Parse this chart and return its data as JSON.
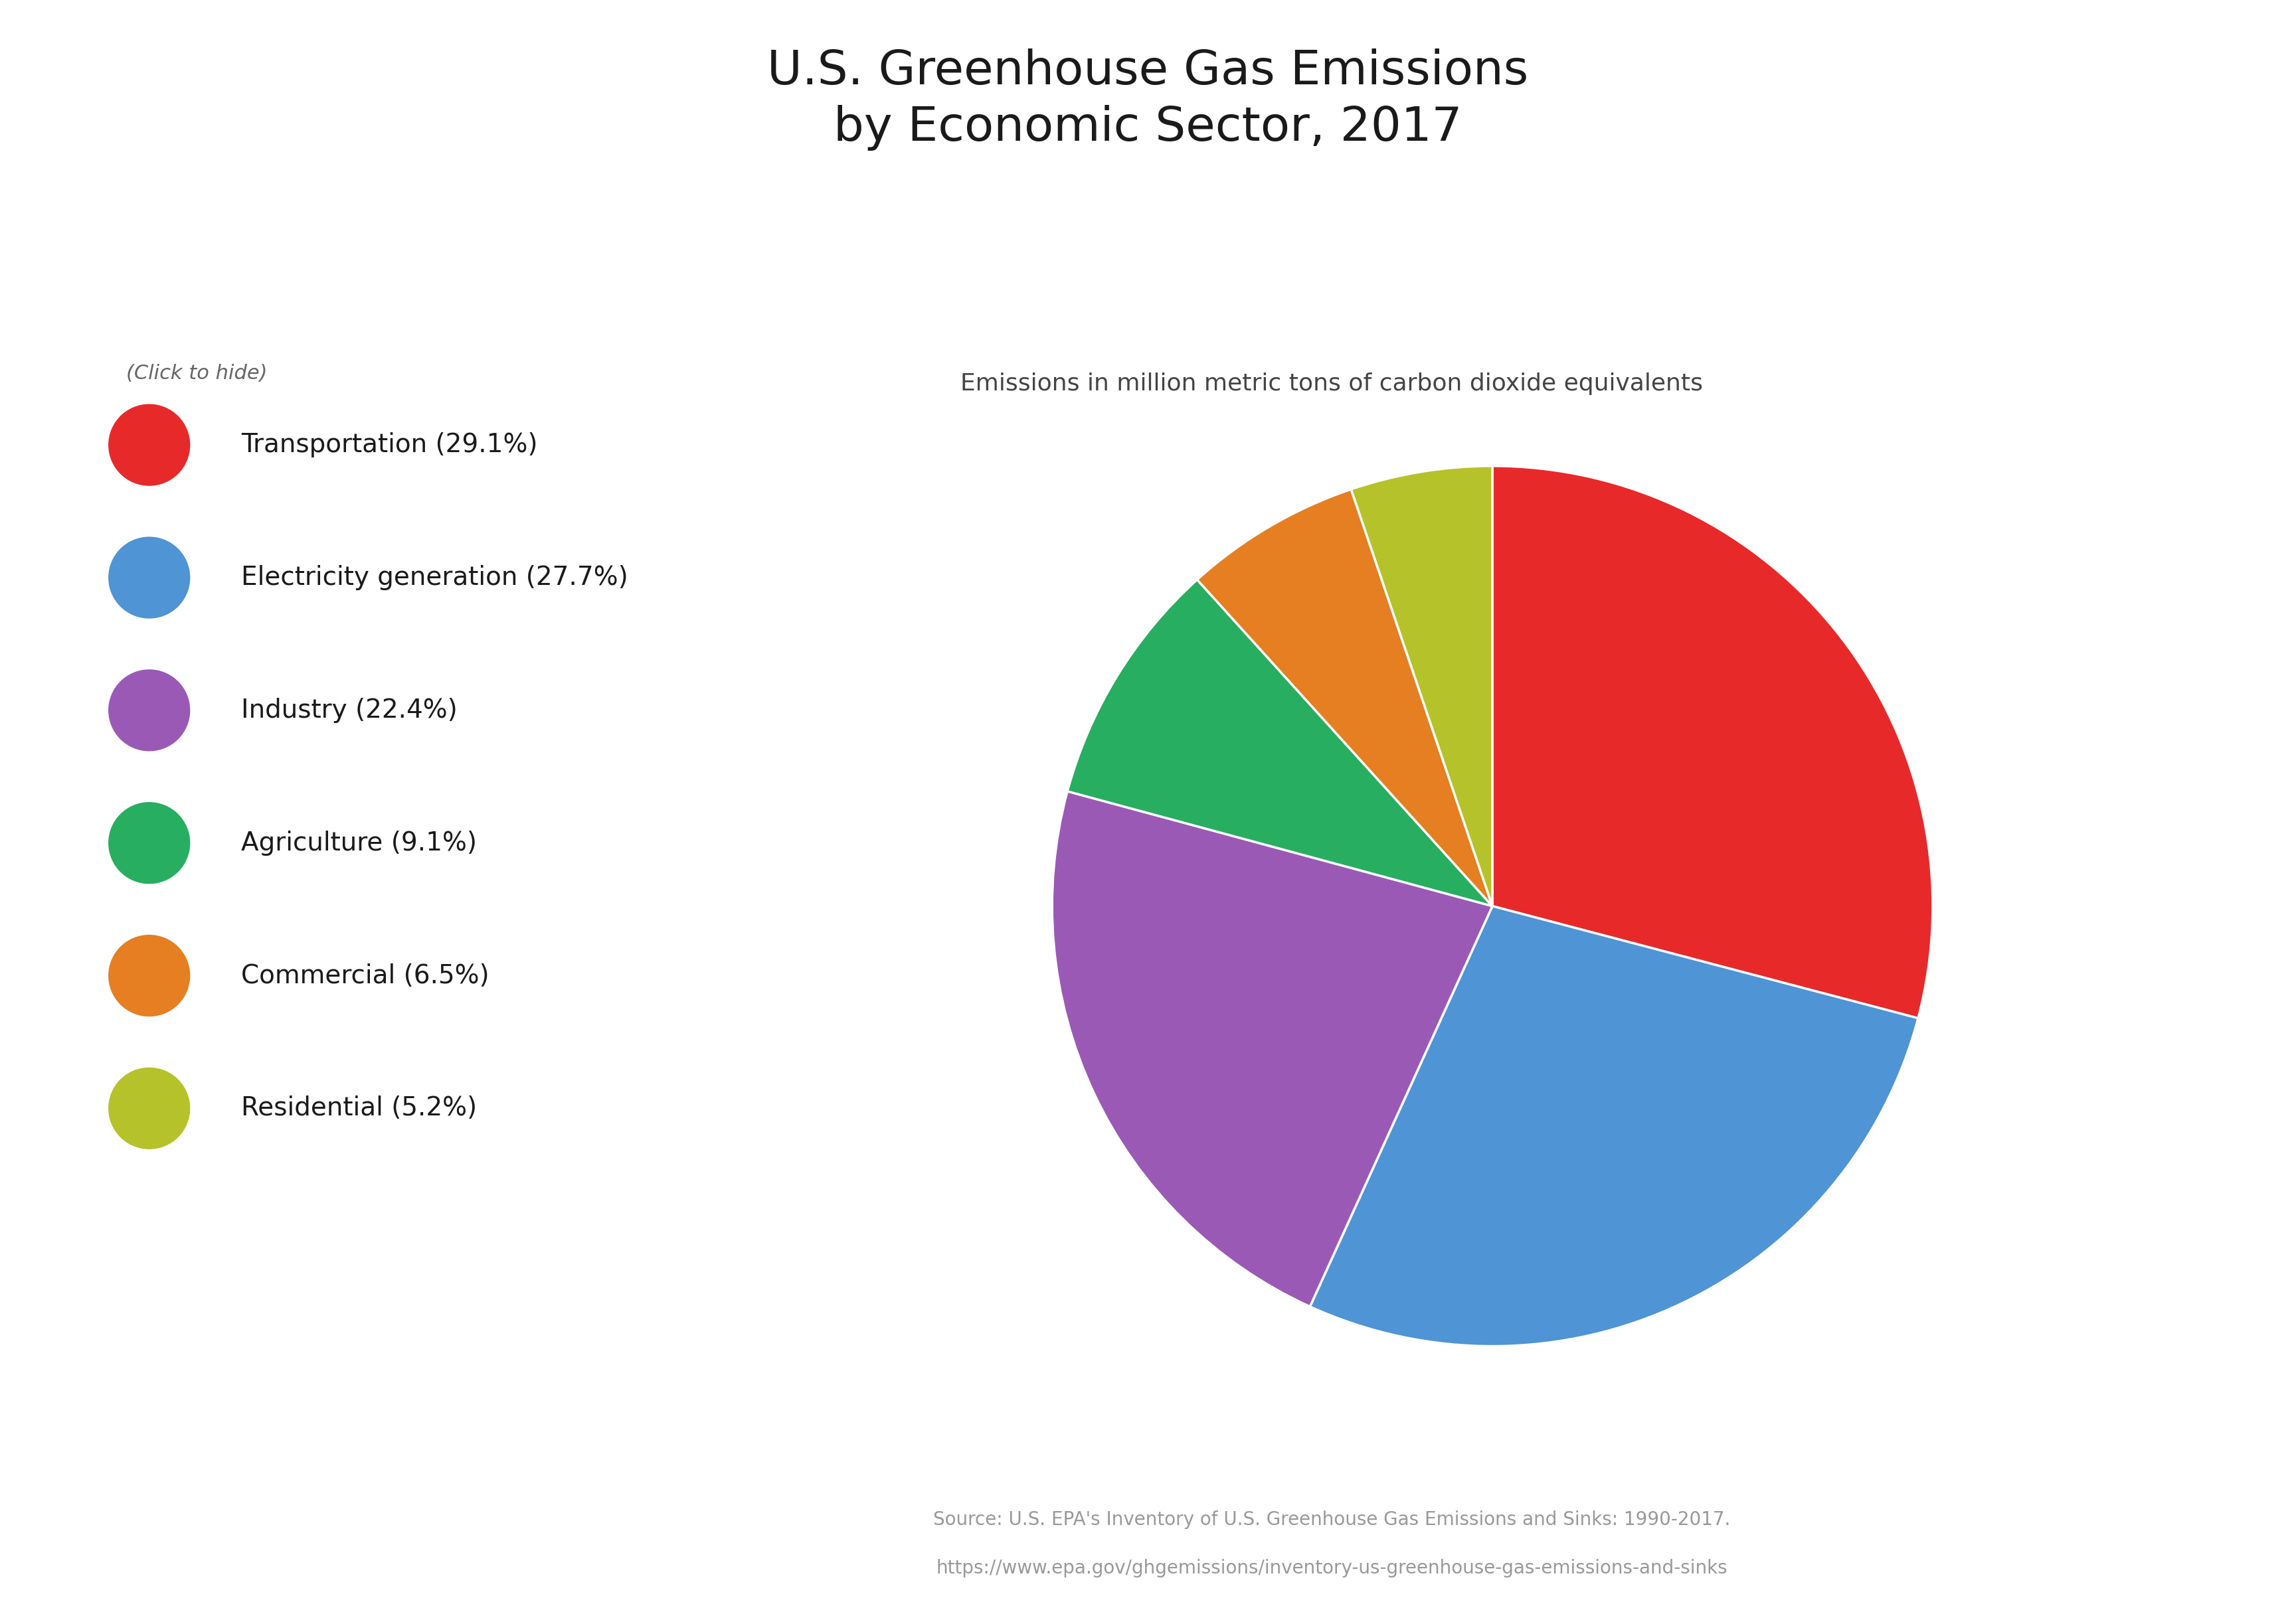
{
  "title": "U.S. Greenhouse Gas Emissions\nby Economic Sector, 2017",
  "subtitle": "Emissions in million metric tons of carbon dioxide equivalents",
  "click_to_hide": "(Click to hide)",
  "sectors": [
    "Transportation (29.1%)",
    "Electricity generation (27.7%)",
    "Industry (22.4%)",
    "Agriculture (9.1%)",
    "Commercial (6.5%)",
    "Residential (5.2%)"
  ],
  "values": [
    29.1,
    27.7,
    22.4,
    9.1,
    6.5,
    5.2
  ],
  "colors": [
    "#e8292a",
    "#4f94d4",
    "#9b59b6",
    "#27ae60",
    "#e67e22",
    "#b5c229"
  ],
  "source_line1": "Source: U.S. EPA's Inventory of U.S. Greenhouse Gas Emissions and Sinks: 1990-2017.",
  "source_line2": "https://www.epa.gov/ghgemissions/inventory-us-greenhouse-gas-emissions-and-sinks",
  "background_color": "#ffffff",
  "title_fontsize": 52,
  "subtitle_fontsize": 26,
  "legend_fontsize": 28,
  "click_fontsize": 22,
  "source_fontsize": 20
}
